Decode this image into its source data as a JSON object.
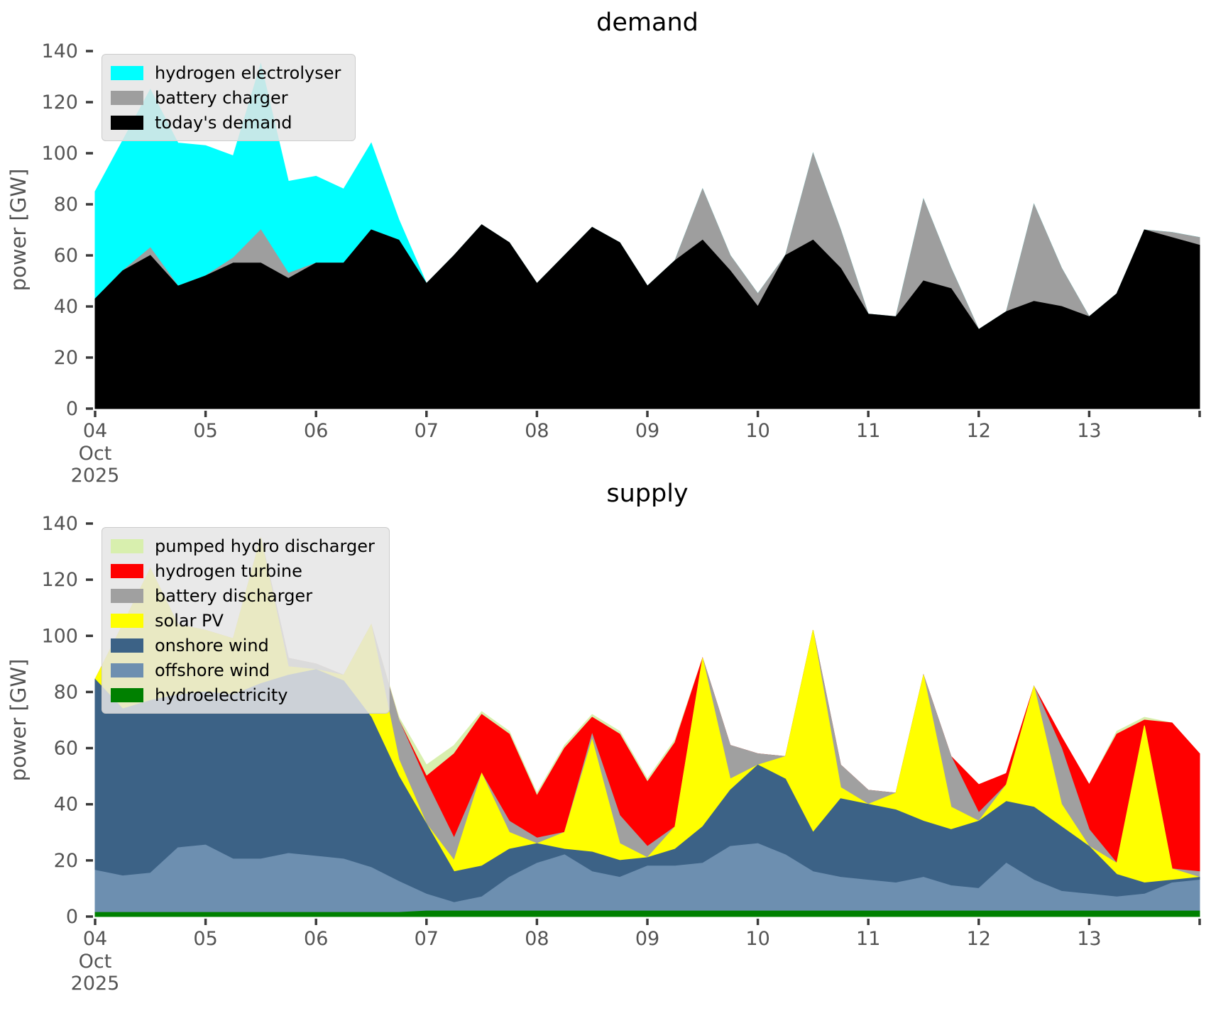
{
  "figure": {
    "background": "#ffffff",
    "tick_color": "#545454",
    "x_axis_month": "Oct",
    "x_axis_year": "2025"
  },
  "chart_data": [
    {
      "type": "area",
      "stacked": true,
      "title": "demand",
      "ylabel": "power [GW]",
      "ylim": [
        0,
        140
      ],
      "yticks": [
        0,
        20,
        40,
        60,
        80,
        100,
        120,
        140
      ],
      "xtick_values": [
        4,
        5,
        6,
        7,
        8,
        9,
        10,
        11,
        12,
        13
      ],
      "xtick_labels": [
        "04",
        "05",
        "06",
        "07",
        "08",
        "09",
        "10",
        "11",
        "12",
        "13"
      ],
      "x_axis_sublabel": [
        "Oct",
        "2025"
      ],
      "grid": false,
      "legend_position": "upper-left",
      "x": [
        4,
        4.25,
        4.5,
        4.75,
        5,
        5.25,
        5.5,
        5.75,
        6,
        6.25,
        6.5,
        6.75,
        7,
        7.25,
        7.5,
        7.75,
        8,
        8.25,
        8.5,
        8.75,
        9,
        9.25,
        9.5,
        9.75,
        10,
        10.25,
        10.5,
        10.75,
        11,
        11.25,
        11.5,
        11.75,
        12,
        12.25,
        12.5,
        12.75,
        13,
        13.25,
        13.5,
        13.75,
        14
      ],
      "series": [
        {
          "name": "today's demand",
          "color": "#000000",
          "values": [
            43,
            54,
            60,
            48,
            52,
            57,
            57,
            51,
            57,
            57,
            70,
            66,
            49,
            60,
            72,
            65,
            49,
            60,
            71,
            65,
            48,
            58,
            66,
            54,
            40,
            60,
            66,
            55,
            37,
            36,
            50,
            47,
            31,
            38,
            42,
            40,
            36,
            45,
            70,
            67,
            64
          ]
        },
        {
          "name": "battery charger",
          "color": "#9e9e9e",
          "values": [
            0,
            0,
            3,
            0,
            0,
            2,
            13,
            2,
            0,
            0,
            0,
            0,
            0,
            0,
            0,
            0,
            0,
            0,
            0,
            0,
            0,
            0,
            20,
            6,
            5,
            0,
            34,
            15,
            0,
            0,
            32,
            8,
            0,
            0,
            38,
            15,
            0,
            0,
            0,
            2,
            3
          ]
        },
        {
          "name": "hydrogen electrolyser",
          "color": "#00ffff",
          "values": [
            42,
            51,
            62,
            56,
            51,
            40,
            65,
            36,
            34,
            29,
            34,
            8,
            0,
            0,
            0,
            0,
            0,
            0,
            0,
            0,
            0,
            0,
            0,
            0,
            0,
            0,
            0,
            0,
            0,
            0,
            0,
            0,
            0,
            0,
            0,
            0,
            0,
            0,
            0,
            0,
            0
          ]
        }
      ],
      "legend": [
        "hydrogen electrolyser",
        "battery charger",
        "today's demand"
      ]
    },
    {
      "type": "area",
      "stacked": true,
      "title": "supply",
      "ylabel": "power [GW]",
      "ylim": [
        0,
        140
      ],
      "yticks": [
        0,
        20,
        40,
        60,
        80,
        100,
        120,
        140
      ],
      "xtick_values": [
        4,
        5,
        6,
        7,
        8,
        9,
        10,
        11,
        12,
        13
      ],
      "xtick_labels": [
        "04",
        "05",
        "06",
        "07",
        "08",
        "09",
        "10",
        "11",
        "12",
        "13"
      ],
      "x_axis_sublabel": [
        "Oct",
        "2025"
      ],
      "grid": false,
      "legend_position": "upper-left",
      "x": [
        4,
        4.25,
        4.5,
        4.75,
        5,
        5.25,
        5.5,
        5.75,
        6,
        6.25,
        6.5,
        6.75,
        7,
        7.25,
        7.5,
        7.75,
        8,
        8.25,
        8.5,
        8.75,
        9,
        9.25,
        9.5,
        9.75,
        10,
        10.25,
        10.5,
        10.75,
        11,
        11.25,
        11.5,
        11.75,
        12,
        12.25,
        12.5,
        12.75,
        13,
        13.25,
        13.5,
        13.75,
        14
      ],
      "series": [
        {
          "name": "hydroelectricity",
          "color": "#008000",
          "values": [
            1.5,
            1.5,
            1.5,
            1.5,
            1.5,
            1.5,
            1.5,
            1.5,
            1.5,
            1.5,
            1.5,
            1.5,
            2,
            2,
            2,
            2,
            2,
            2,
            2,
            2,
            2,
            2,
            2,
            2,
            2,
            2,
            2,
            2,
            2,
            2,
            2,
            2,
            2,
            2,
            2,
            2,
            2,
            2,
            2,
            2,
            2
          ]
        },
        {
          "name": "offshore wind",
          "color": "#6d8fb0",
          "values": [
            15,
            13,
            14,
            23,
            24,
            19,
            19,
            21,
            20,
            19,
            16,
            11,
            6,
            3,
            5,
            12,
            17,
            20,
            14,
            12,
            16,
            16,
            17,
            23,
            24,
            20,
            14,
            12,
            11,
            10,
            12,
            9,
            8,
            17,
            11,
            7,
            6,
            5,
            6,
            10,
            11
          ]
        },
        {
          "name": "onshore wind",
          "color": "#3c6286",
          "values": [
            68,
            59.5,
            61.5,
            54.5,
            54.5,
            58.5,
            62.5,
            63.5,
            66.5,
            63.5,
            53.5,
            37.5,
            25,
            11,
            11,
            10,
            7,
            2,
            7,
            6,
            3,
            6,
            13,
            20,
            28,
            27,
            14,
            28,
            27,
            26,
            20,
            20,
            24,
            22,
            26,
            23,
            17,
            8,
            4,
            1,
            1
          ]
        },
        {
          "name": "solar PV",
          "color": "#ffff00",
          "values": [
            0,
            30,
            47,
            25,
            22,
            20,
            52,
            3,
            0,
            2,
            33,
            6,
            0,
            4,
            33,
            6,
            0,
            6,
            40,
            6,
            0,
            8,
            60,
            4,
            0,
            8,
            72,
            4,
            0,
            6,
            52,
            8,
            0,
            6,
            43,
            8,
            0,
            4,
            56,
            4,
            0
          ]
        },
        {
          "name": "battery discharger",
          "color": "#a0a0a0",
          "values": [
            0,
            0,
            0,
            0,
            0,
            0,
            0,
            3,
            2,
            0,
            0,
            14,
            15,
            8,
            0,
            4,
            2,
            0,
            2,
            10,
            4,
            0,
            0,
            12,
            4,
            0,
            0,
            8,
            5,
            0,
            0,
            18,
            3,
            0,
            0,
            20,
            6,
            0,
            0,
            0,
            2
          ]
        },
        {
          "name": "hydrogen turbine",
          "color": "#ff0000",
          "values": [
            0,
            0,
            0,
            0,
            0,
            0,
            0,
            0,
            0,
            0,
            0,
            0,
            2,
            30,
            21,
            31,
            15,
            30,
            6,
            29,
            23,
            30,
            0,
            0,
            0,
            0,
            0,
            0,
            0,
            0,
            0,
            0,
            10,
            4,
            0,
            4,
            16,
            46,
            2,
            52,
            42
          ]
        },
        {
          "name": "pumped hydro discharger",
          "color": "#d8efae",
          "values": [
            0,
            0,
            0,
            0,
            0,
            0,
            0,
            0,
            0,
            0,
            0,
            1,
            4,
            3,
            1,
            1,
            1,
            1,
            1,
            1,
            1,
            1,
            0,
            0,
            0,
            0,
            0,
            0,
            0,
            0,
            0,
            0,
            0,
            0,
            0,
            0,
            0,
            1,
            1,
            0,
            0
          ]
        }
      ],
      "legend": [
        "pumped hydro discharger",
        "hydrogen turbine",
        "battery discharger",
        "solar PV",
        "onshore wind",
        "offshore wind",
        "hydroelectricity"
      ]
    }
  ]
}
